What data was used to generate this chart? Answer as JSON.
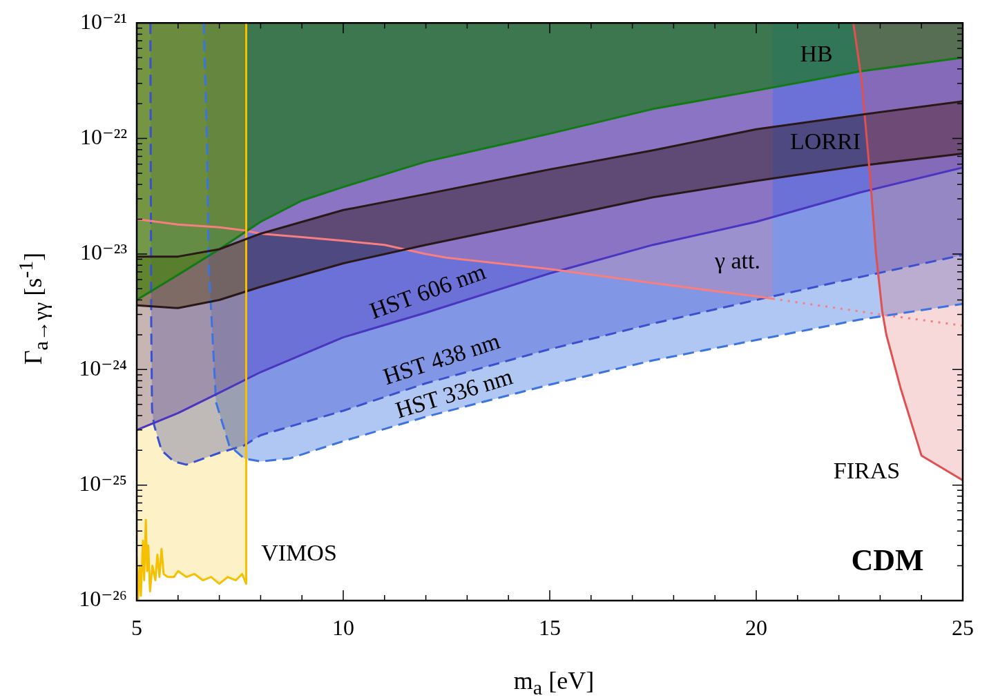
{
  "chart_data": {
    "type": "line",
    "xlabel": "m$_{a}$ [eV]",
    "ylabel": "Γ$_{a→γγ}$ [s$^{-1}$]",
    "log": "y",
    "xlim": [
      5,
      25
    ],
    "xticks": [
      5,
      {
        "value": 6,
        "label": null
      },
      {
        "value": 7,
        "label": null
      },
      {
        "value": 8,
        "label": null
      },
      {
        "value": 9,
        "label": null
      },
      10,
      {
        "value": 11,
        "label": null
      },
      {
        "value": 12,
        "label": null
      },
      {
        "value": 13,
        "label": null
      },
      {
        "value": 14,
        "label": null
      },
      15,
      {
        "value": 16,
        "label": null
      },
      {
        "value": 17,
        "label": null
      },
      {
        "value": 18,
        "label": null
      },
      {
        "value": 19,
        "label": null
      },
      20,
      {
        "value": 21,
        "label": null
      },
      {
        "value": 22,
        "label": null
      },
      {
        "value": 23,
        "label": null
      },
      {
        "value": 24,
        "label": null
      },
      25
    ],
    "ylim": [
      1e-26,
      1e-21
    ],
    "yticks": [
      {
        "value": 1e-26,
        "label": "10⁻²⁶"
      },
      {
        "value": 2e-26,
        "label": null
      },
      {
        "value": 3e-26,
        "label": null
      },
      {
        "value": 4e-26,
        "label": null
      },
      {
        "value": 5e-26,
        "label": null
      },
      {
        "value": 6e-26,
        "label": null
      },
      {
        "value": 7e-26,
        "label": null
      },
      {
        "value": 8e-26,
        "label": null
      },
      {
        "value": 9e-26,
        "label": null
      },
      {
        "value": 1e-25,
        "label": "10⁻²⁵"
      },
      {
        "value": 2e-25,
        "label": null
      },
      {
        "value": 3e-25,
        "label": null
      },
      {
        "value": 4e-25,
        "label": null
      },
      {
        "value": 5e-25,
        "label": null
      },
      {
        "value": 6e-25,
        "label": null
      },
      {
        "value": 7e-25,
        "label": null
      },
      {
        "value": 8e-25,
        "label": null
      },
      {
        "value": 9e-25,
        "label": null
      },
      {
        "value": 1e-24,
        "label": "10⁻²⁴"
      },
      {
        "value": 2e-24,
        "label": null
      },
      {
        "value": 3e-24,
        "label": null
      },
      {
        "value": 4e-24,
        "label": null
      },
      {
        "value": 5e-24,
        "label": null
      },
      {
        "value": 6e-24,
        "label": null
      },
      {
        "value": 7e-24,
        "label": null
      },
      {
        "value": 8e-24,
        "label": null
      },
      {
        "value": 9e-24,
        "label": null
      },
      {
        "value": 1e-23,
        "label": "10⁻²³"
      },
      {
        "value": 2e-23,
        "label": null
      },
      {
        "value": 3e-23,
        "label": null
      },
      {
        "value": 4e-23,
        "label": null
      },
      {
        "value": 5e-23,
        "label": null
      },
      {
        "value": 6e-23,
        "label": null
      },
      {
        "value": 7e-23,
        "label": null
      },
      {
        "value": 8e-23,
        "label": null
      },
      {
        "value": 9e-23,
        "label": null
      },
      {
        "value": 1e-22,
        "label": "10⁻²²"
      },
      {
        "value": 2e-22,
        "label": null
      },
      {
        "value": 3e-22,
        "label": null
      },
      {
        "value": 4e-22,
        "label": null
      },
      {
        "value": 5e-22,
        "label": null
      },
      {
        "value": 6e-22,
        "label": null
      },
      {
        "value": 7e-22,
        "label": null
      },
      {
        "value": 8e-22,
        "label": null
      },
      {
        "value": 9e-22,
        "label": null
      },
      {
        "value": 1e-21,
        "label": "10⁻²¹"
      }
    ],
    "series": [
      {
        "name": "HST 336 nm",
        "color": "#3b74e0",
        "line_style": "dashed",
        "x": [
          6.62,
          6.7,
          6.74,
          6.92,
          7.24,
          7.6,
          8,
          8.7,
          10,
          12,
          15,
          17.5,
          20,
          22.5,
          25
        ],
        "values": [
          1e-21,
          1e-22,
          8.3e-24,
          5.2e-25,
          2.2e-25,
          1.7e-25,
          1.6e-25,
          1.7e-25,
          2.4e-25,
          3.9e-25,
          7.4e-25,
          1.2e-24,
          1.8e-24,
          2.7e-24,
          3.7e-24
        ],
        "lower": [
          1e-21,
          1e-22,
          8.3e-24,
          5.2e-25,
          2.2e-25,
          1.7e-25,
          1.6e-25,
          1.7e-25,
          2.4e-25,
          3.9e-25,
          7.4e-25,
          1.2e-24,
          1.8e-24,
          2.7e-24,
          3.7e-24
        ],
        "upper": [
          1e-21,
          1e-21,
          1e-21,
          1e-21,
          1e-21,
          1e-21,
          1e-21,
          1e-21,
          1e-21,
          1e-21,
          1e-21,
          1e-21,
          1e-21,
          1e-21,
          1e-21
        ]
      },
      {
        "name": "HST 438 nm",
        "color": "#3a50d0",
        "line_style": "dashed",
        "x": [
          5.33,
          5.35,
          5.37,
          5.42,
          5.6,
          5.9,
          6.2,
          7,
          7.6,
          8,
          10,
          12,
          15,
          17.5,
          20,
          22.5,
          25
        ],
        "values": [
          1e-21,
          2.7e-24,
          4.5e-25,
          3.3e-25,
          2e-25,
          1.6e-25,
          1.5e-25,
          1.9e-25,
          2.2e-25,
          2.7e-25,
          4.4e-25,
          7.6e-25,
          1.5e-24,
          2.5e-24,
          4e-24,
          6.3e-24,
          9.8e-24
        ],
        "lower": [
          1e-21,
          2.7e-24,
          4.5e-25,
          3.3e-25,
          2e-25,
          1.6e-25,
          1.5e-25,
          1.9e-25,
          2.2e-25,
          2.7e-25,
          4.4e-25,
          7.6e-25,
          1.5e-24,
          2.5e-24,
          4e-24,
          6.3e-24,
          9.8e-24
        ],
        "upper": [
          1e-21,
          1e-21,
          1e-21,
          1e-21,
          1e-21,
          1e-21,
          1e-21,
          1e-21,
          1e-21,
          1e-21,
          1e-21,
          1e-21,
          1e-21,
          1e-21,
          1e-21,
          1e-21,
          1e-21
        ]
      },
      {
        "name": "HST 606 nm",
        "color": "#4a35c0",
        "x": [
          5,
          6,
          7,
          8,
          10,
          12,
          15,
          17.5,
          20,
          22.5,
          25
        ],
        "values": [
          3e-25,
          4.2e-25,
          6.3e-25,
          9.5e-25,
          1.9e-24,
          3.1e-24,
          6.8e-24,
          1.2e-23,
          1.9e-23,
          3.4e-23,
          5.6e-23
        ],
        "lower": [
          3e-25,
          4.2e-25,
          6.3e-25,
          9.5e-25,
          1.9e-24,
          3.1e-24,
          6.8e-24,
          1.2e-23,
          1.9e-23,
          3.4e-23,
          5.6e-23
        ],
        "upper": [
          1e-21,
          1e-21,
          1e-21,
          1e-21,
          1e-21,
          1e-21,
          1e-21,
          1e-21,
          1e-21,
          1e-21,
          1e-21
        ]
      },
      {
        "name": "γ att.",
        "color": "#f77f7f",
        "x": [
          5,
          6,
          7,
          7.6,
          8,
          9,
          10,
          11,
          12,
          12.5,
          15,
          17.5,
          20,
          20.4
        ],
        "values": [
          2e-23,
          1.8e-23,
          1.7e-23,
          1.6e-23,
          1.5e-23,
          1.4e-23,
          1.3e-23,
          1.2e-23,
          1e-23,
          9.3e-24,
          7.4e-24,
          5.6e-24,
          4.3e-24,
          4.1e-24
        ],
        "lower": [
          2e-23,
          1.8e-23,
          1.7e-23,
          1.6e-23,
          1.5e-23,
          1.4e-23,
          1.3e-23,
          1.2e-23,
          1e-23,
          9.3e-24,
          7.4e-24,
          5.6e-24,
          4.3e-24,
          4.1e-24
        ],
        "upper": [
          1e-21,
          1e-21,
          1e-21,
          1e-21,
          1e-21,
          1e-21,
          1e-21,
          1e-21,
          1e-21,
          1e-21,
          1e-21,
          1e-21,
          1e-21,
          1e-21
        ]
      },
      {
        "color": "#f77f7f",
        "line_style": "dotted",
        "x": [
          20.4,
          23,
          25
        ],
        "values": [
          4.1e-24,
          3e-24,
          2.4e-24
        ]
      },
      {
        "name": "LORRI",
        "color": "#2a1818",
        "x": [
          5,
          6,
          7,
          8,
          10,
          12,
          15,
          17.5,
          20,
          22.5,
          25
        ],
        "values": [
          3.6e-24,
          3.4e-24,
          4e-24,
          5.2e-24,
          8.3e-24,
          1.2e-23,
          2e-23,
          3.1e-23,
          4.3e-23,
          5.8e-23,
          7.4e-23
        ],
        "lower": [
          3.6e-24,
          3.4e-24,
          4e-24,
          5.2e-24,
          8.3e-24,
          1.2e-23,
          2e-23,
          3.1e-23,
          4.3e-23,
          5.8e-23,
          7.4e-23
        ],
        "upper": [
          9.5e-24,
          9.5e-24,
          1.1e-23,
          1.5e-23,
          2.4e-23,
          3.3e-23,
          5.4e-23,
          7.9e-23,
          1.2e-22,
          1.6e-22,
          2.1e-22
        ]
      },
      {
        "name": "HB",
        "color": "#127a12",
        "x": [
          5,
          6,
          7,
          8,
          9,
          10,
          12,
          15,
          17.5,
          20,
          22.5,
          25
        ],
        "values": [
          4e-24,
          6.6e-24,
          1.1e-23,
          1.9e-23,
          2.9e-23,
          3.8e-23,
          6.3e-23,
          1.1e-22,
          1.8e-22,
          2.6e-22,
          3.8e-22,
          5e-22
        ],
        "lower": [
          4e-24,
          6.6e-24,
          1.1e-23,
          1.9e-23,
          2.9e-23,
          3.8e-23,
          6.3e-23,
          1.1e-22,
          1.8e-22,
          2.6e-22,
          3.8e-22,
          5e-22
        ],
        "upper": [
          1e-21,
          1e-21,
          1e-21,
          1e-21,
          1e-21,
          1e-21,
          1e-21,
          1e-21,
          1e-21,
          1e-21,
          1e-21,
          1e-21
        ]
      },
      {
        "name": "VIMOS",
        "color": "#f5c000",
        "x": [
          5,
          5.03,
          5.07,
          5.1,
          5.15,
          5.18,
          5.22,
          5.25,
          5.28,
          5.32,
          5.38,
          5.45,
          5.5,
          5.55,
          5.6,
          5.65,
          5.75,
          5.9,
          6,
          6.2,
          6.4,
          6.6,
          6.8,
          7,
          7.2,
          7.4,
          7.55,
          7.65,
          7.65
        ],
        "values": [
          2.4e-26,
          1e-26,
          2e-26,
          1.1e-26,
          3.3e-26,
          1.5e-26,
          5e-26,
          1.8e-26,
          3e-26,
          1.2e-26,
          2e-26,
          1.5e-26,
          2.5e-26,
          1.6e-26,
          2.8e-26,
          1.7e-26,
          1.6e-26,
          1.6e-26,
          1.8e-26,
          1.6e-26,
          1.7e-26,
          1.5e-26,
          1.6e-26,
          1.4e-26,
          1.6e-26,
          1.5e-26,
          1.7e-26,
          1.4e-26,
          1e-21
        ],
        "lower": [
          2.4e-26,
          1e-26,
          2e-26,
          1.1e-26,
          3.3e-26,
          1.5e-26,
          5e-26,
          1.8e-26,
          3e-26,
          1.2e-26,
          2e-26,
          1.5e-26,
          2.5e-26,
          1.6e-26,
          2.8e-26,
          1.7e-26,
          1.6e-26,
          1.6e-26,
          1.8e-26,
          1.6e-26,
          1.7e-26,
          1.5e-26,
          1.6e-26,
          1.4e-26,
          1.6e-26,
          1.5e-26,
          1.7e-26,
          1.4e-26,
          1e-21
        ],
        "upper": [
          1e-21,
          1e-21,
          1e-21,
          1e-21,
          1e-21,
          1e-21,
          1e-21,
          1e-21,
          1e-21,
          1e-21,
          1e-21,
          1e-21,
          1e-21,
          1e-21,
          1e-21,
          1e-21,
          1e-21,
          1e-21,
          1e-21,
          1e-21,
          1e-21,
          1e-21,
          1e-21,
          1e-21,
          1e-21,
          1e-21,
          1e-21,
          1e-21,
          1e-21
        ]
      },
      {
        "name": "FIRAS",
        "color": "#e05050",
        "x": [
          22.35,
          22.55,
          22.75,
          22.9,
          23.05,
          23.15,
          23.5,
          24,
          25
        ],
        "values": [
          1e-21,
          3.2e-22,
          5e-23,
          1e-23,
          3.2e-24,
          2e-24,
          6.8e-25,
          1.8e-25,
          1.1e-25
        ],
        "lower": [
          1e-21,
          3.2e-22,
          5e-23,
          1e-23,
          3.2e-24,
          2e-24,
          6.8e-25,
          1.8e-25,
          1.1e-25
        ],
        "upper": [
          1e-21,
          1e-21,
          1e-21,
          1e-21,
          1e-21,
          1e-21,
          1e-21,
          1e-21,
          1e-21
        ]
      },
      {
        "color": "#2a1818",
        "x": [
          5,
          6,
          7,
          8,
          10,
          12,
          15,
          17.5,
          20,
          22.5,
          25
        ],
        "values": [
          9.5e-24,
          9.5e-24,
          1.1e-23,
          1.5e-23,
          2.4e-23,
          3.3e-23,
          5.4e-23,
          7.9e-23,
          1.2e-22,
          1.6e-22,
          2.1e-22
        ]
      }
    ],
    "annotations": [
      "CDM"
    ]
  }
}
